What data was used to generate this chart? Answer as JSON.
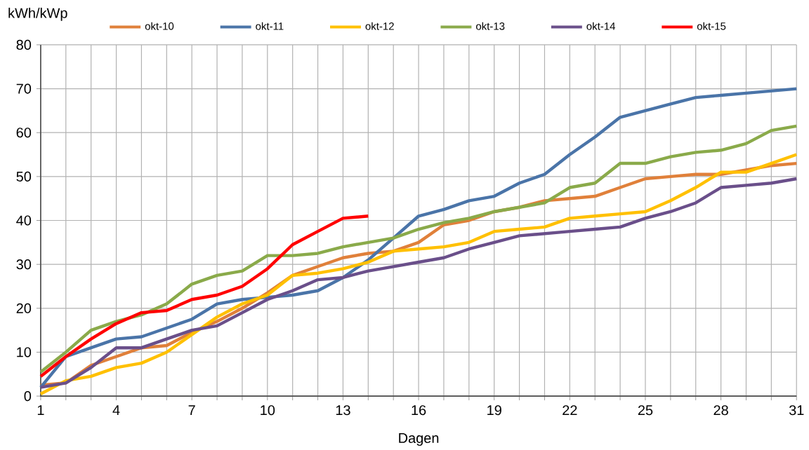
{
  "chart_data": {
    "type": "line",
    "ylabel": "kWh/kWp",
    "xlabel": "Dagen",
    "x": [
      1,
      2,
      3,
      4,
      5,
      6,
      7,
      8,
      9,
      10,
      11,
      12,
      13,
      14,
      15,
      16,
      17,
      18,
      19,
      20,
      21,
      22,
      23,
      24,
      25,
      26,
      27,
      28,
      29,
      30,
      31
    ],
    "xlim": [
      1,
      31
    ],
    "xticks": [
      1,
      {
        "value": 2,
        "label": null
      },
      {
        "value": 3,
        "label": null
      },
      4,
      {
        "value": 5,
        "label": null
      },
      {
        "value": 6,
        "label": null
      },
      7,
      {
        "value": 8,
        "label": null
      },
      {
        "value": 9,
        "label": null
      },
      10,
      {
        "value": 11,
        "label": null
      },
      {
        "value": 12,
        "label": null
      },
      13,
      {
        "value": 14,
        "label": null
      },
      {
        "value": 15,
        "label": null
      },
      16,
      {
        "value": 17,
        "label": null
      },
      {
        "value": 18,
        "label": null
      },
      19,
      {
        "value": 20,
        "label": null
      },
      {
        "value": 21,
        "label": null
      },
      22,
      {
        "value": 23,
        "label": null
      },
      {
        "value": 24,
        "label": null
      },
      25,
      {
        "value": 26,
        "label": null
      },
      {
        "value": 27,
        "label": null
      },
      28,
      {
        "value": 29,
        "label": null
      },
      {
        "value": 30,
        "label": null
      },
      31
    ],
    "ylim": [
      0,
      80
    ],
    "yticks": [
      0,
      10,
      20,
      30,
      40,
      50,
      60,
      70,
      80
    ],
    "grid": true,
    "legend": "top",
    "marker": "none",
    "line_style": "solid",
    "series": [
      {
        "name": "okt-10",
        "color": "#e0803a",
        "values": [
          2.5,
          3,
          7,
          9,
          11,
          11.5,
          14.5,
          17,
          20,
          23.5,
          27.5,
          29.5,
          31.5,
          32.5,
          33,
          35,
          39,
          40,
          42,
          43,
          44.5,
          45,
          45.5,
          47.5,
          49.5,
          50,
          50.5,
          50.5,
          51.5,
          52.5,
          53
        ]
      },
      {
        "name": "okt-11",
        "color": "#4a74a8",
        "values": [
          2,
          9,
          11,
          13,
          13.5,
          15.5,
          17.5,
          21,
          22,
          22.5,
          23,
          24,
          27,
          31,
          36,
          41,
          42.5,
          44.5,
          45.5,
          48.5,
          50.5,
          55,
          59,
          63.5,
          65,
          66.5,
          68,
          68.5,
          69,
          69.5,
          70
        ]
      },
      {
        "name": "okt-12",
        "color": "#ffc000",
        "values": [
          0.5,
          3.5,
          4.5,
          6.5,
          7.5,
          10,
          14,
          18,
          21,
          23,
          27.5,
          28,
          29,
          30.5,
          33,
          33.5,
          34,
          35,
          37.5,
          38,
          38.5,
          40.5,
          41,
          41.5,
          42,
          44.5,
          47.5,
          51,
          51,
          53,
          55
        ]
      },
      {
        "name": "okt-13",
        "color": "#8aaa4a",
        "values": [
          5.5,
          10,
          15,
          17,
          18.5,
          21,
          25.5,
          27.5,
          28.5,
          32,
          32,
          32.5,
          34,
          35,
          36,
          38,
          39.5,
          40.5,
          42,
          43,
          44,
          47.5,
          48.5,
          53,
          53,
          54.5,
          55.5,
          56,
          57.5,
          60.5,
          61.5
        ]
      },
      {
        "name": "okt-14",
        "color": "#6a4f8a",
        "values": [
          2,
          3,
          6.5,
          11,
          11,
          13,
          15,
          16,
          19,
          22,
          24,
          26.5,
          27,
          28.5,
          29.5,
          30.5,
          31.5,
          33.5,
          35,
          36.5,
          37,
          37.5,
          38,
          38.5,
          40.5,
          42,
          44,
          47.5,
          48,
          48.5,
          49.5
        ]
      },
      {
        "name": "okt-15",
        "color": "#ff0000",
        "values": [
          4.5,
          9,
          13,
          16.5,
          19,
          19.5,
          22,
          23,
          25,
          29,
          34.5,
          37.5,
          40.5,
          41,
          null,
          null,
          null,
          null,
          null,
          null,
          null,
          null,
          null,
          null,
          null,
          null,
          null,
          null,
          null,
          null,
          null
        ]
      }
    ]
  }
}
